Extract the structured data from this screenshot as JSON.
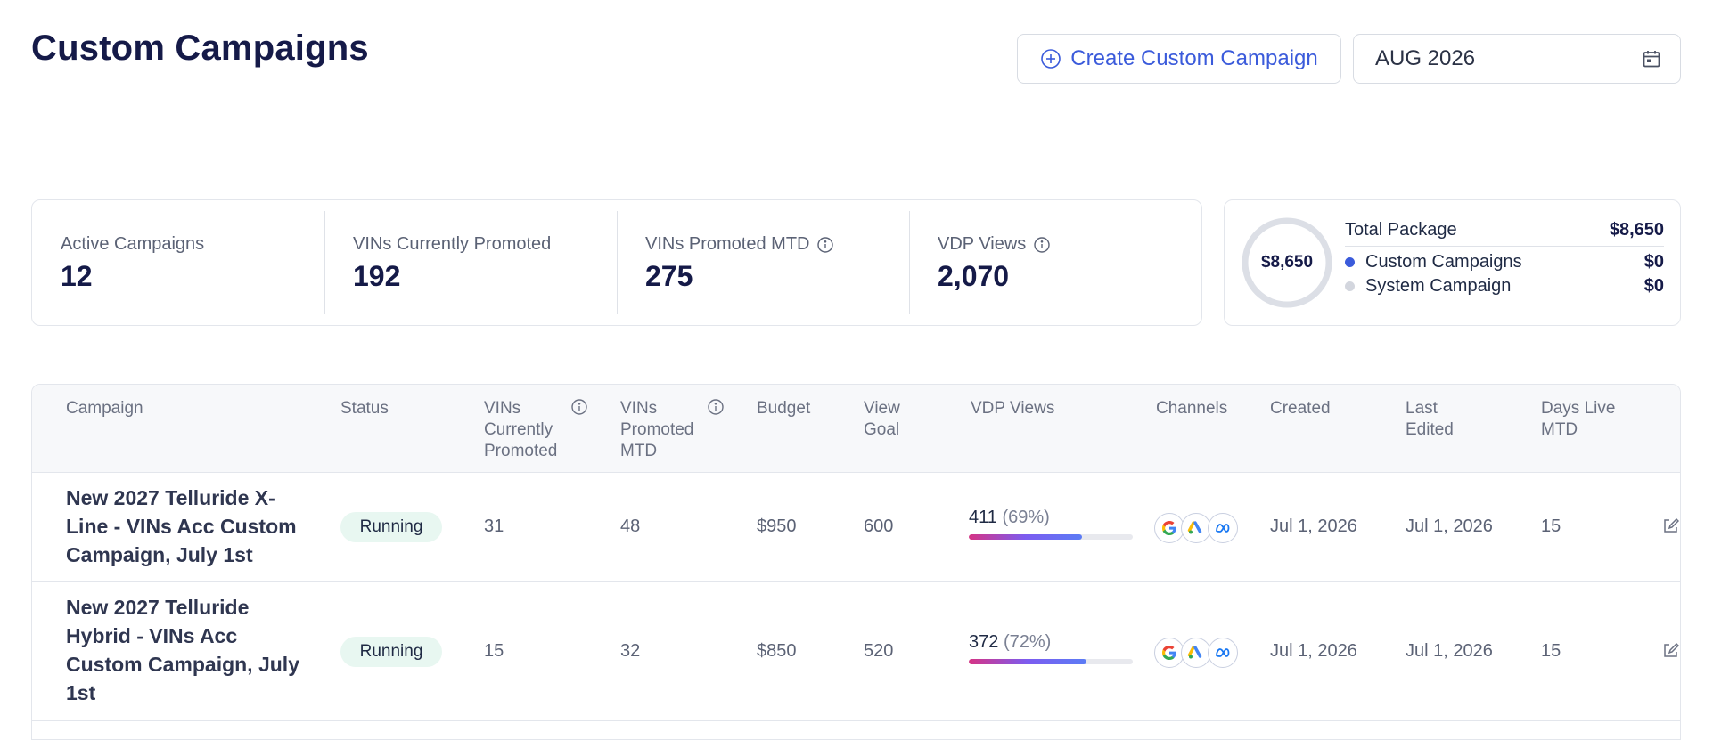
{
  "header": {
    "title": "Custom Campaigns",
    "create_button_label": "Create Custom Campaign",
    "date_value": "AUG 2026"
  },
  "stats": [
    {
      "label": "Active Campaigns",
      "value": "12",
      "info": false
    },
    {
      "label": "VINs Currently Promoted",
      "value": "192",
      "info": false
    },
    {
      "label": "VINs Promoted MTD",
      "value": "275",
      "info": true
    },
    {
      "label": "VDP Views",
      "value": "2,070",
      "info": true
    }
  ],
  "package": {
    "donut_label": "$8,650",
    "total_label": "Total Package",
    "total_value": "$8,650",
    "items": [
      {
        "label": "Custom Campaigns",
        "value": "$0",
        "color": "#3b5bdb"
      },
      {
        "label": "System Campaign",
        "value": "$0",
        "color": "#d3d6de"
      }
    ]
  },
  "table": {
    "columns": {
      "campaign": "Campaign",
      "status": "Status",
      "vins_current": [
        "VINs",
        "Currently",
        "Promoted"
      ],
      "vins_mtd": [
        "VINs",
        "Promoted",
        "MTD"
      ],
      "budget": "Budget",
      "view_goal": [
        "View",
        "Goal"
      ],
      "vdp_views": "VDP Views",
      "channels": "Channels",
      "created": "Created",
      "last_edited": [
        "Last",
        "Edited"
      ],
      "days_live": [
        "Days Live",
        "MTD"
      ]
    },
    "rows": [
      {
        "name_lines": [
          "New 2027 Telluride X-",
          "Line - VINs Acc Custom",
          "Campaign, July 1st"
        ],
        "status": "Running",
        "vins_current": "31",
        "vins_mtd": "48",
        "budget": "$950",
        "view_goal": "600",
        "vdp_views": "411",
        "vdp_pct_label": "(69%)",
        "vdp_pct": 0.69,
        "channels": [
          "google-icon",
          "google-ads-icon",
          "meta-icon"
        ],
        "created": "Jul 1, 2026",
        "last_edited": "Jul 1, 2026",
        "days_live": "15"
      },
      {
        "name_lines": [
          "New 2027 Telluride",
          "Hybrid - VINs Acc",
          "Custom Campaign, July",
          "1st"
        ],
        "status": "Running",
        "vins_current": "15",
        "vins_mtd": "32",
        "budget": "$850",
        "view_goal": "520",
        "vdp_views": "372",
        "vdp_pct_label": "(72%)",
        "vdp_pct": 0.72,
        "channels": [
          "google-icon",
          "google-ads-icon",
          "meta-icon"
        ],
        "created": "Jul 1, 2026",
        "last_edited": "Jul 1, 2026",
        "days_live": "15"
      }
    ]
  }
}
